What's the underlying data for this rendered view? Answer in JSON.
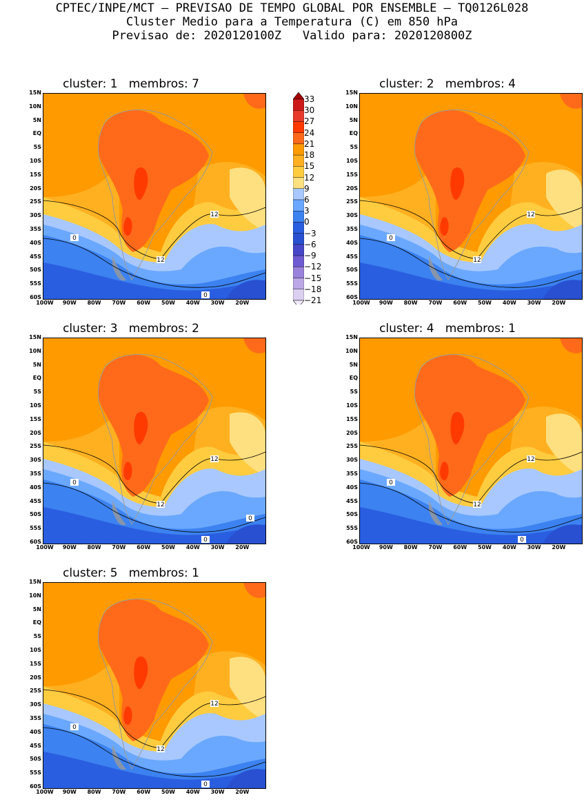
{
  "header": {
    "line1": "CPTEC/INPE/MCT — PREVISAO DE TEMPO GLOBAL POR ENSEMBLE — TQ0126L028",
    "line2": "Cluster Medio para a Temperatura (C) em 850 hPa",
    "line3": "Previsao de: 2020120100Z   Valido para: 2020120800Z"
  },
  "lat_labels": [
    "15N",
    "10N",
    "5N",
    "EQ",
    "5S",
    "10S",
    "15S",
    "20S",
    "25S",
    "30S",
    "35S",
    "40S",
    "45S",
    "50S",
    "55S",
    "60S"
  ],
  "lon_labels": [
    "100W",
    "90W",
    "80W",
    "70W",
    "60W",
    "50W",
    "40W",
    "30W",
    "20W"
  ],
  "colorbar": {
    "levels": [
      "33",
      "30",
      "27",
      "24",
      "21",
      "18",
      "15",
      "12",
      "9",
      "6",
      "3",
      "0",
      "−3",
      "−6",
      "−9",
      "−12",
      "−15",
      "−18",
      "−21"
    ],
    "colors": [
      "#a50000",
      "#cc1a1a",
      "#e83a2a",
      "#ff3a00",
      "#ff6a1a",
      "#ff9a00",
      "#ffb020",
      "#ffcc40",
      "#ffe080",
      "#a8c8ff",
      "#6aa8ff",
      "#3c82f0",
      "#2a5ee0",
      "#2850d0",
      "#4646c8",
      "#6e5ad2",
      "#9a82dc",
      "#bca8e6",
      "#dcd0f0",
      "#f0e8fa"
    ]
  },
  "panels": [
    {
      "title": "cluster: 1   membros: 7",
      "contour_labels": [
        "12",
        "12",
        "0",
        "0"
      ]
    },
    {
      "title": "cluster: 2   membros: 4",
      "contour_labels": [
        "12",
        "12",
        "0"
      ]
    },
    {
      "title": "cluster: 3   membros: 2",
      "contour_labels": [
        "12",
        "12",
        "0",
        "0",
        "0"
      ]
    },
    {
      "title": "cluster: 4   membros: 1",
      "contour_labels": [
        "12",
        "12",
        "0",
        "0"
      ]
    },
    {
      "title": "cluster: 5   membros: 1",
      "contour_labels": [
        "12",
        "12",
        "0",
        "0"
      ]
    }
  ]
}
